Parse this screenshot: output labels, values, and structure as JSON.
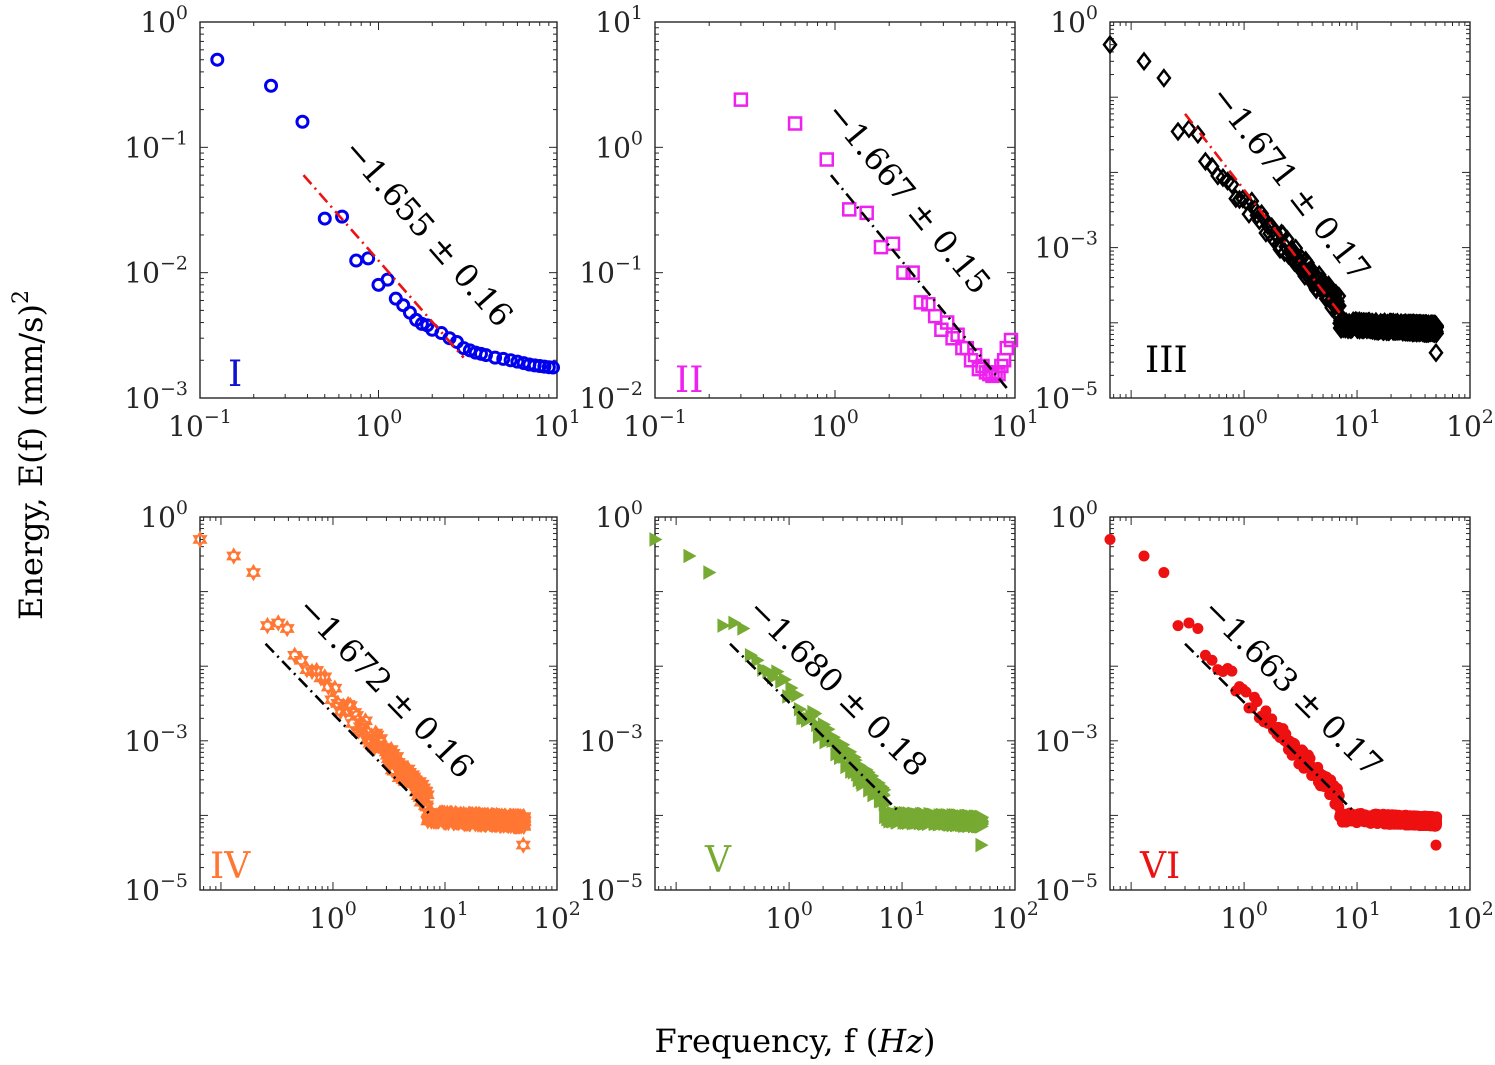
{
  "figure": {
    "ylabel": "Energy, E(f) (mm/s)",
    "ylabel_exp": "2",
    "xlabel_main": "Frequency, f (",
    "xlabel_italic": "Hz",
    "xlabel_end": ")"
  },
  "chart_data": [
    {
      "type": "scatter",
      "panel": "I",
      "label_color": "#1010d0",
      "marker": "circle-open",
      "color": "#0000ee",
      "fit_color": "#ee1111",
      "fit_dash": "dashdot",
      "xlim": [
        0.1,
        10
      ],
      "ylim": [
        0.001,
        1
      ],
      "xticks": [
        {
          "base": "10",
          "exp": "−1",
          "v": 0.1
        },
        {
          "base": "10",
          "exp": "0",
          "v": 1
        },
        {
          "base": "10",
          "exp": "1",
          "v": 10
        }
      ],
      "yticks": [
        {
          "base": "10",
          "exp": "−3",
          "v": 0.001
        },
        {
          "base": "10",
          "exp": "−2",
          "v": 0.01
        },
        {
          "base": "10",
          "exp": "−1",
          "v": 0.1
        },
        {
          "base": "10",
          "exp": "0",
          "v": 1
        }
      ],
      "slope_text": "−1.655 ± 0.16",
      "fit": {
        "x": [
          0.38,
          3.0
        ],
        "y": [
          0.06,
          0.0021
        ]
      },
      "points": [
        [
          0.125,
          0.5
        ],
        [
          0.25,
          0.31
        ],
        [
          0.375,
          0.16
        ],
        [
          0.5,
          0.027
        ],
        [
          0.625,
          0.028
        ],
        [
          0.75,
          0.0125
        ],
        [
          0.875,
          0.013
        ],
        [
          1.0,
          0.008
        ],
        [
          1.125,
          0.0088
        ],
        [
          1.25,
          0.0062
        ],
        [
          1.375,
          0.0055
        ],
        [
          1.5,
          0.0048
        ],
        [
          1.625,
          0.0042
        ],
        [
          1.75,
          0.0039
        ],
        [
          1.875,
          0.0038
        ],
        [
          2.0,
          0.0035
        ],
        [
          2.25,
          0.0033
        ],
        [
          2.5,
          0.003
        ],
        [
          2.75,
          0.0028
        ],
        [
          3.0,
          0.0025
        ],
        [
          3.25,
          0.0024
        ],
        [
          3.5,
          0.0023
        ],
        [
          3.75,
          0.00225
        ],
        [
          4.0,
          0.0022
        ],
        [
          4.5,
          0.0021
        ],
        [
          5.0,
          0.00205
        ],
        [
          5.5,
          0.002
        ],
        [
          6.0,
          0.00195
        ],
        [
          6.5,
          0.0019
        ],
        [
          7.0,
          0.00185
        ],
        [
          7.5,
          0.00182
        ],
        [
          8.0,
          0.0018
        ],
        [
          8.5,
          0.00178
        ],
        [
          9.0,
          0.00176
        ],
        [
          9.5,
          0.00175
        ]
      ]
    },
    {
      "type": "scatter",
      "panel": "II",
      "label_color": "#ee22ee",
      "marker": "square-open",
      "color": "#ee22ee",
      "fit_color": "#000000",
      "fit_dash": "dashdot",
      "xlim": [
        0.1,
        10
      ],
      "ylim": [
        0.01,
        10
      ],
      "xticks": [
        {
          "base": "10",
          "exp": "−1",
          "v": 0.1
        },
        {
          "base": "10",
          "exp": "0",
          "v": 1
        },
        {
          "base": "10",
          "exp": "1",
          "v": 10
        }
      ],
      "yticks": [
        {
          "base": "10",
          "exp": "−2",
          "v": 0.01
        },
        {
          "base": "10",
          "exp": "−1",
          "v": 0.1
        },
        {
          "base": "10",
          "exp": "0",
          "v": 1
        },
        {
          "base": "10",
          "exp": "1",
          "v": 10
        }
      ],
      "slope_text": "−1.667 ± 0.15",
      "fit": {
        "x": [
          0.95,
          9.0
        ],
        "y": [
          0.6,
          0.012
        ]
      },
      "points": [
        [
          0.3,
          2.4
        ],
        [
          0.6,
          1.55
        ],
        [
          0.9,
          0.8
        ],
        [
          1.2,
          0.32
        ],
        [
          1.5,
          0.3
        ],
        [
          1.8,
          0.16
        ],
        [
          2.1,
          0.17
        ],
        [
          2.4,
          0.1
        ],
        [
          2.7,
          0.1
        ],
        [
          3.0,
          0.058
        ],
        [
          3.3,
          0.056
        ],
        [
          3.6,
          0.045
        ],
        [
          3.9,
          0.035
        ],
        [
          4.2,
          0.04
        ],
        [
          4.5,
          0.03
        ],
        [
          4.8,
          0.032
        ],
        [
          5.1,
          0.025
        ],
        [
          5.4,
          0.025
        ],
        [
          5.7,
          0.02
        ],
        [
          6.0,
          0.022
        ],
        [
          6.3,
          0.017
        ],
        [
          6.6,
          0.018
        ],
        [
          6.9,
          0.016
        ],
        [
          7.2,
          0.0155
        ],
        [
          7.5,
          0.015
        ],
        [
          7.8,
          0.016
        ],
        [
          8.1,
          0.0155
        ],
        [
          8.4,
          0.018
        ],
        [
          8.7,
          0.02
        ],
        [
          9.0,
          0.025
        ],
        [
          9.5,
          0.029
        ]
      ]
    },
    {
      "type": "scatter",
      "panel": "III",
      "label_color": "#000000",
      "marker": "diamond-open",
      "color": "#000000",
      "fit_color": "#ee1111",
      "fit_dash": "dashdot",
      "xlim": [
        0.065,
        100
      ],
      "ylim": [
        1e-05,
        1
      ],
      "xticks": [
        {
          "base": "10",
          "exp": "0",
          "v": 1
        },
        {
          "base": "10",
          "exp": "1",
          "v": 10
        },
        {
          "base": "10",
          "exp": "2",
          "v": 100
        }
      ],
      "yticks": [
        {
          "base": "10",
          "exp": "−5",
          "v": 1e-05
        },
        {
          "base": "10",
          "exp": "−3",
          "v": 0.001
        },
        {
          "base": "10",
          "exp": "0",
          "v": 1
        }
      ],
      "slope_text": "−1.671 ± 0.17",
      "fit": {
        "x": [
          0.3,
          7.5
        ],
        "y": [
          0.06,
          0.00012
        ]
      },
      "points": "powerlaw:III"
    },
    {
      "type": "scatter",
      "panel": "IV",
      "label_color": "#ff7733",
      "marker": "hexagram-filled",
      "color": "#ff7733",
      "fit_color": "#000000",
      "fit_dash": "dashdot",
      "xlim": [
        0.065,
        100
      ],
      "ylim": [
        1e-05,
        1
      ],
      "xticks": [
        {
          "base": "10",
          "exp": "0",
          "v": 1
        },
        {
          "base": "10",
          "exp": "1",
          "v": 10
        },
        {
          "base": "10",
          "exp": "2",
          "v": 100
        }
      ],
      "yticks": [
        {
          "base": "10",
          "exp": "−5",
          "v": 1e-05
        },
        {
          "base": "10",
          "exp": "−3",
          "v": 0.001
        },
        {
          "base": "10",
          "exp": "0",
          "v": 1
        }
      ],
      "slope_text": "−1.672 ± 0.16",
      "fit": {
        "x": [
          0.25,
          7.5
        ],
        "y": [
          0.02,
          0.0001
        ]
      },
      "points": "powerlaw:IV"
    },
    {
      "type": "scatter",
      "panel": "V",
      "label_color": "#77aa33",
      "marker": "triangle-right",
      "color": "#77aa33",
      "fit_color": "#000000",
      "fit_dash": "dashdot",
      "xlim": [
        0.065,
        100
      ],
      "ylim": [
        1e-05,
        1
      ],
      "xticks": [
        {
          "base": "10",
          "exp": "0",
          "v": 1
        },
        {
          "base": "10",
          "exp": "1",
          "v": 10
        },
        {
          "base": "10",
          "exp": "2",
          "v": 100
        }
      ],
      "yticks": [
        {
          "base": "10",
          "exp": "−5",
          "v": 1e-05
        },
        {
          "base": "10",
          "exp": "−3",
          "v": 0.001
        },
        {
          "base": "10",
          "exp": "0",
          "v": 1
        }
      ],
      "slope_text": "−1.680 ± 0.18",
      "fit": {
        "x": [
          0.3,
          9.5
        ],
        "y": [
          0.02,
          0.00011
        ]
      },
      "points": "powerlaw:V"
    },
    {
      "type": "scatter",
      "panel": "VI",
      "label_color": "#ee1111",
      "marker": "circle-filled",
      "color": "#ee1111",
      "fit_color": "#000000",
      "fit_dash": "dashdot",
      "xlim": [
        0.065,
        100
      ],
      "ylim": [
        1e-05,
        1
      ],
      "xticks": [
        {
          "base": "10",
          "exp": "0",
          "v": 1
        },
        {
          "base": "10",
          "exp": "1",
          "v": 10
        },
        {
          "base": "10",
          "exp": "2",
          "v": 100
        }
      ],
      "yticks": [
        {
          "base": "10",
          "exp": "−5",
          "v": 1e-05
        },
        {
          "base": "10",
          "exp": "−3",
          "v": 0.001
        },
        {
          "base": "10",
          "exp": "0",
          "v": 1
        }
      ],
      "slope_text": "−1.663 ± 0.17",
      "fit": {
        "x": [
          0.3,
          9.0
        ],
        "y": [
          0.02,
          0.00012
        ]
      },
      "points": "powerlaw:VI"
    }
  ]
}
